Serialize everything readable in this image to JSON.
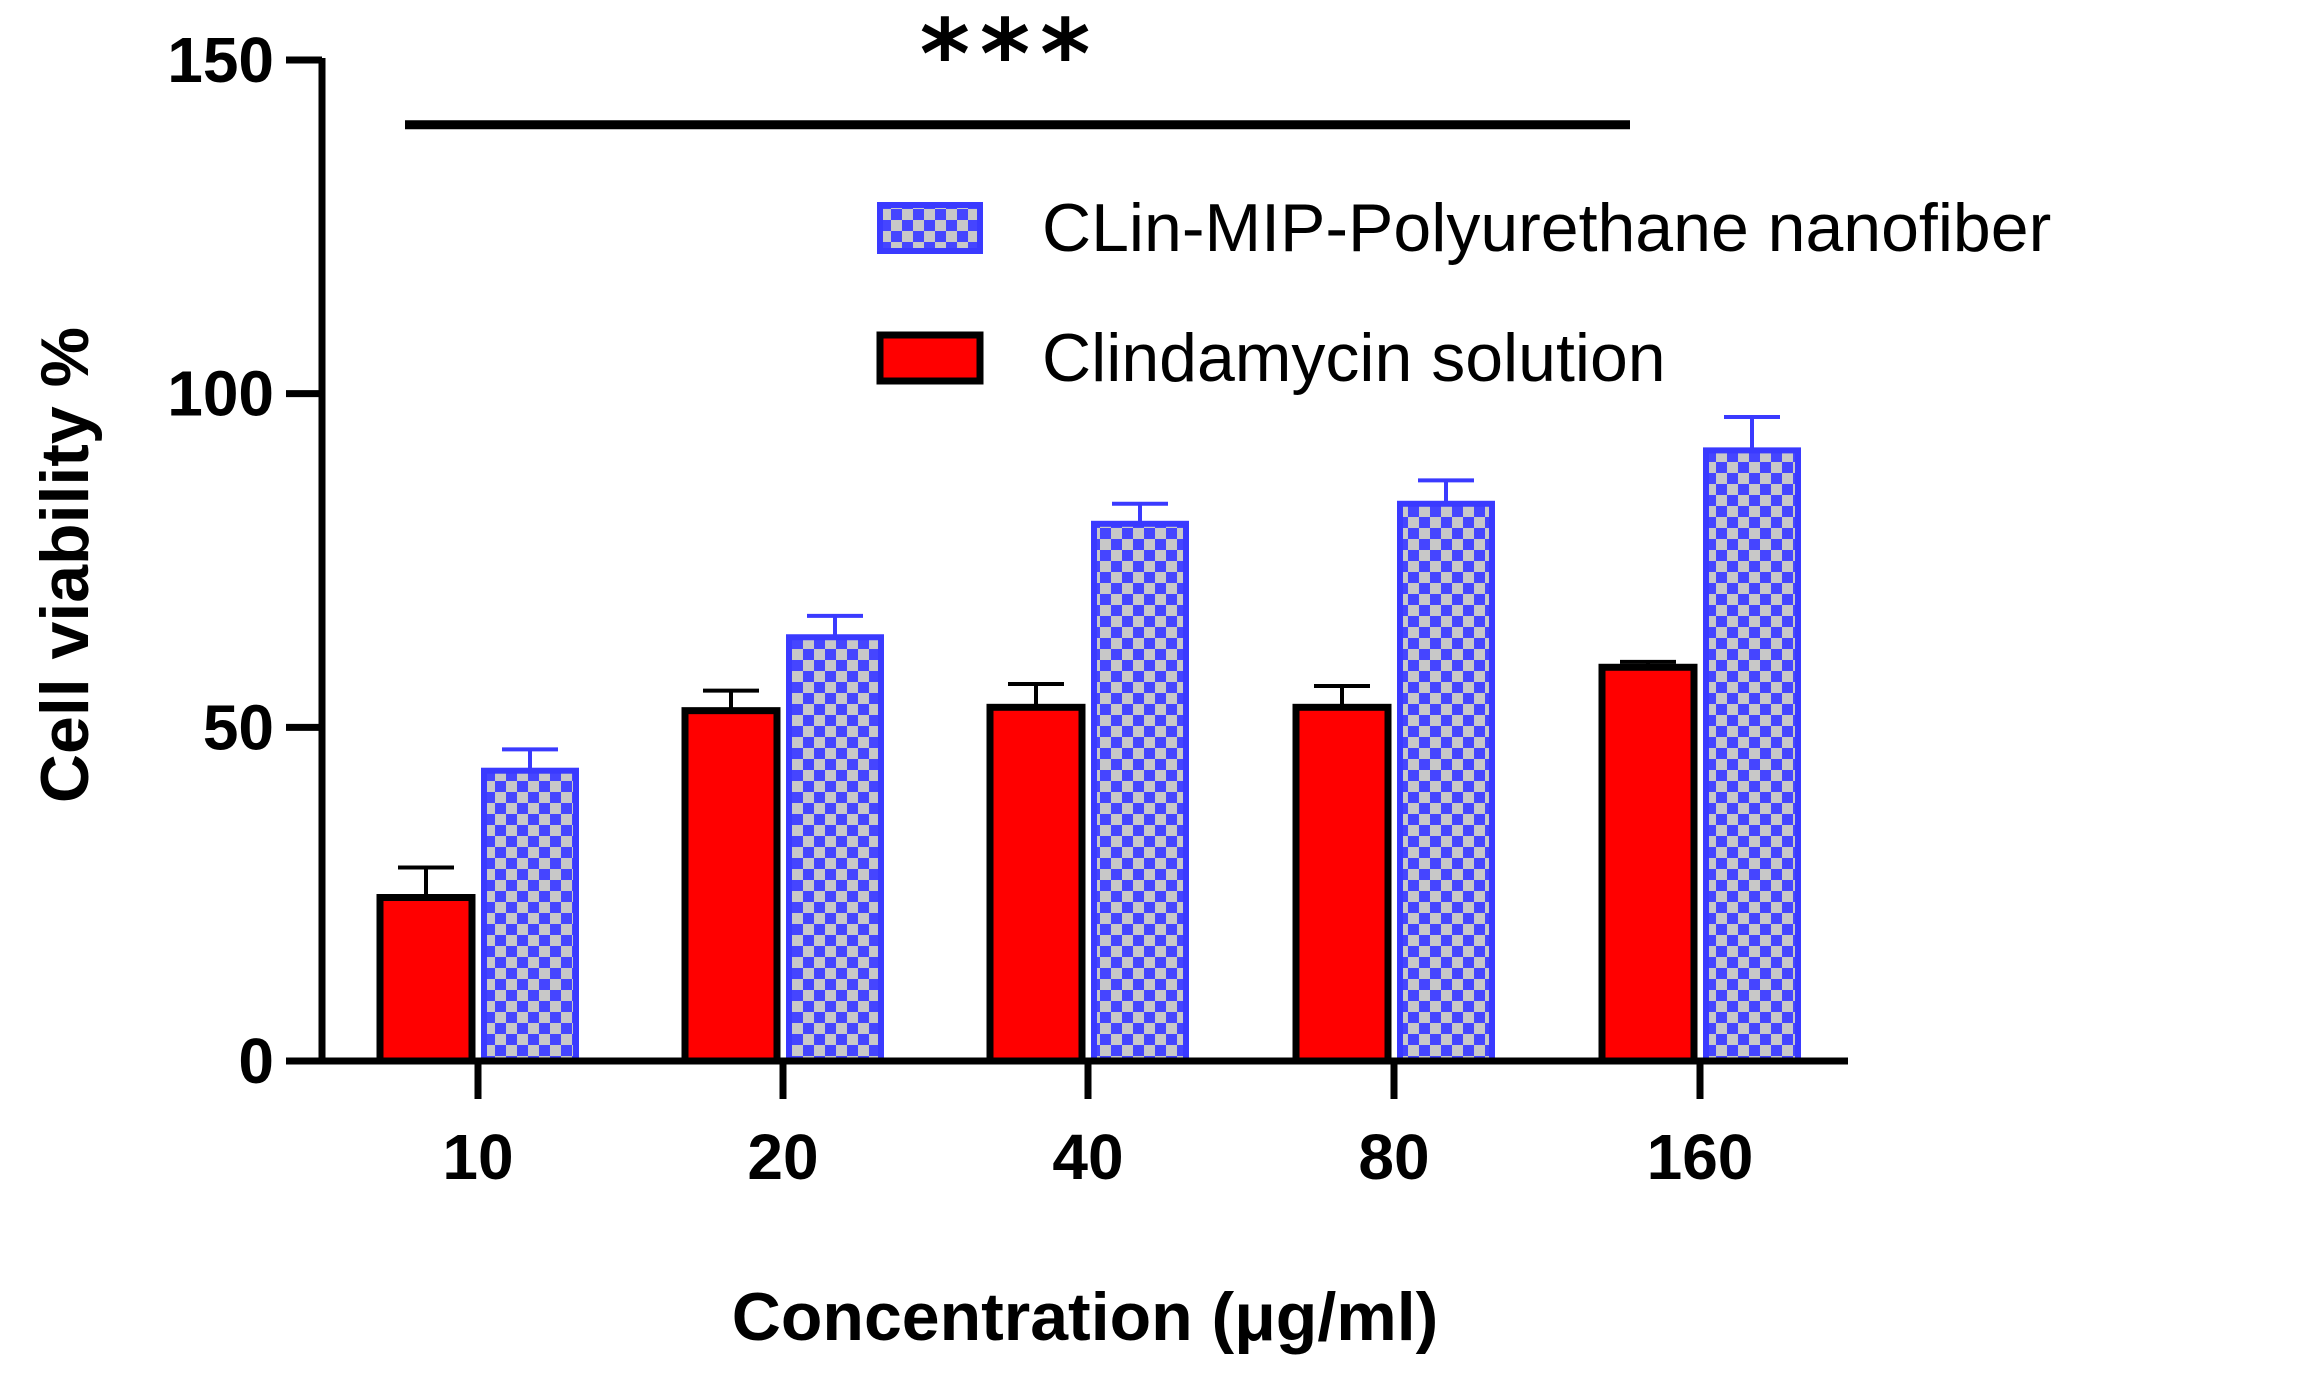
{
  "chart_data": {
    "type": "bar",
    "title": "",
    "xlabel": "Concentration (μg/ml)",
    "ylabel": "Cell viability %",
    "ylim": [
      0,
      150
    ],
    "yticks": [
      0,
      50,
      100,
      150
    ],
    "categories": [
      "10",
      "20",
      "40",
      "80",
      "160"
    ],
    "series": [
      {
        "name": "Clindamycin solution",
        "values": [
          24.5,
          52.5,
          53,
          53,
          59
        ],
        "errors": [
          4.5,
          3,
          3.5,
          3.2,
          0.8
        ],
        "color": "#ff0000",
        "stroke": "#000000"
      },
      {
        "name": "CLin-MIP-Polyurethane nanofiber",
        "values": [
          43.5,
          63.5,
          80.5,
          83.5,
          91.5
        ],
        "errors": [
          3.2,
          3.2,
          3,
          3.5,
          5
        ],
        "color": "#c8c8c8",
        "stroke": "#3a3aff"
      }
    ],
    "legend_position": "top-right",
    "grid": false,
    "annotation": {
      "text": "***",
      "span": [
        "10",
        "160"
      ],
      "y": 140
    }
  }
}
